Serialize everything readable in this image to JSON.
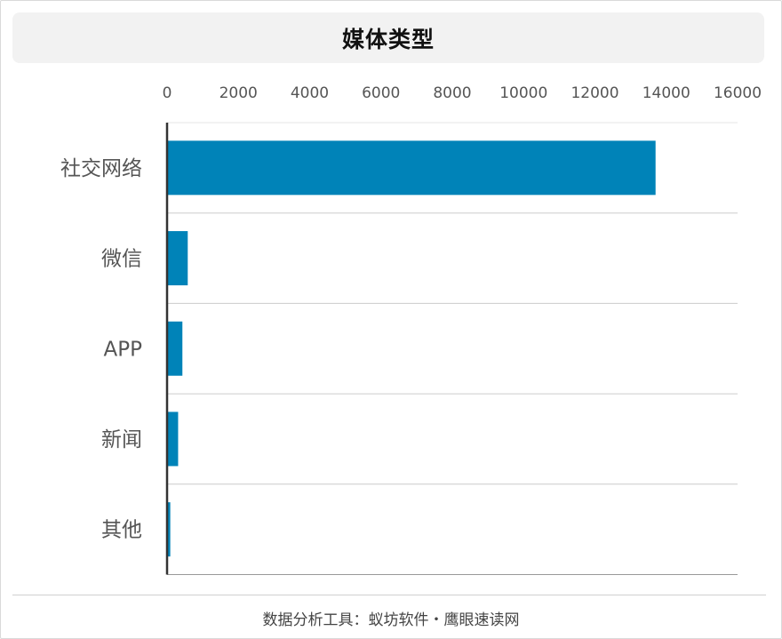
{
  "header": {
    "title": "媒体类型"
  },
  "footer": {
    "source": "数据分析工具：蚁坊软件・鹰眼速读网"
  },
  "colors": {
    "bar": "#0083b8",
    "grid": "#cccccc",
    "axis": "#333333",
    "tick_text": "#555555"
  },
  "chart_data": {
    "type": "bar",
    "orientation": "horizontal",
    "title": "媒体类型",
    "categories": [
      "社交网络",
      "微信",
      "APP",
      "新闻",
      "其他"
    ],
    "values": [
      13700,
      580,
      430,
      310,
      90
    ],
    "xlim": [
      0,
      16000
    ],
    "xticks": [
      0,
      2000,
      4000,
      6000,
      8000,
      10000,
      12000,
      14000,
      16000
    ],
    "xaxis_position": "top",
    "grid": "horizontal separators",
    "legend": "none"
  }
}
